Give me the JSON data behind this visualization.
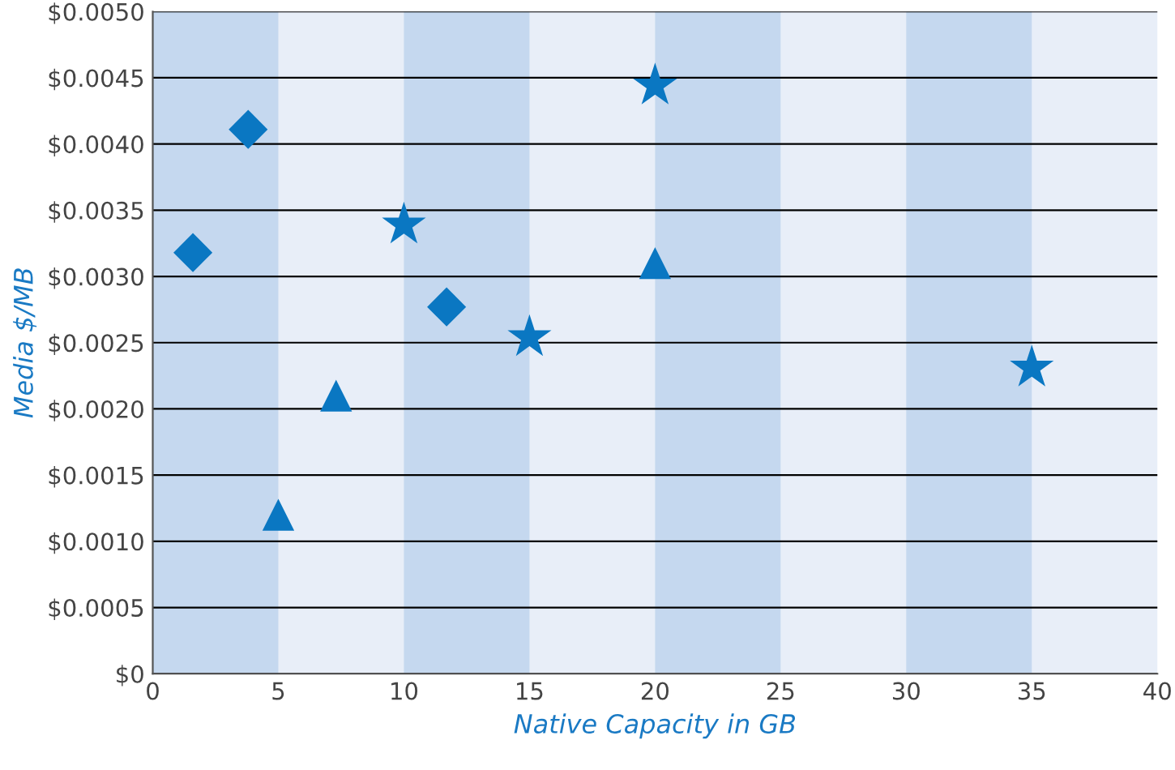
{
  "chart_data": {
    "type": "scatter",
    "xlabel": "Native Capacity in GB",
    "ylabel": "Media $/MB",
    "xlim": [
      0,
      40
    ],
    "xticks": [
      0,
      5,
      10,
      15,
      20,
      25,
      30,
      35,
      40
    ],
    "ylim": [
      0,
      0.005
    ],
    "yticks": [
      {
        "value": 0,
        "label": "$0"
      },
      {
        "value": 0.0005,
        "label": "$0.0005"
      },
      {
        "value": 0.001,
        "label": "$0.0010"
      },
      {
        "value": 0.0015,
        "label": "$0.0015"
      },
      {
        "value": 0.002,
        "label": "$0.0020"
      },
      {
        "value": 0.0025,
        "label": "$0.0025"
      },
      {
        "value": 0.003,
        "label": "$0.0030"
      },
      {
        "value": 0.0035,
        "label": "$0.0035"
      },
      {
        "value": 0.004,
        "label": "$0.0040"
      },
      {
        "value": 0.0045,
        "label": "$0.0045"
      },
      {
        "value": 0.005,
        "label": "$0.0050"
      }
    ],
    "grid": "y",
    "bands": [
      {
        "axis": "x",
        "from": 0,
        "to": 5,
        "color": "#c5d8ef"
      },
      {
        "axis": "x",
        "from": 10,
        "to": 15,
        "color": "#c5d8ef"
      },
      {
        "axis": "x",
        "from": 20,
        "to": 25,
        "color": "#c5d8ef"
      },
      {
        "axis": "x",
        "from": 30,
        "to": 35,
        "color": "#c5d8ef"
      }
    ],
    "series": [
      {
        "color": "#0a77c2",
        "marker": "diamond",
        "x": [
          1.6,
          3.8,
          11.7
        ],
        "values": [
          0.00318,
          0.00411,
          0.00277
        ]
      },
      {
        "color": "#0a77c2",
        "marker": "triangle",
        "x": [
          5,
          7.3,
          20
        ],
        "values": [
          0.0012,
          0.0021,
          0.0031
        ]
      },
      {
        "color": "#0a77c2",
        "marker": "star",
        "x": [
          10,
          15,
          20,
          35
        ],
        "values": [
          0.00339,
          0.00254,
          0.00444,
          0.00231
        ]
      }
    ]
  }
}
